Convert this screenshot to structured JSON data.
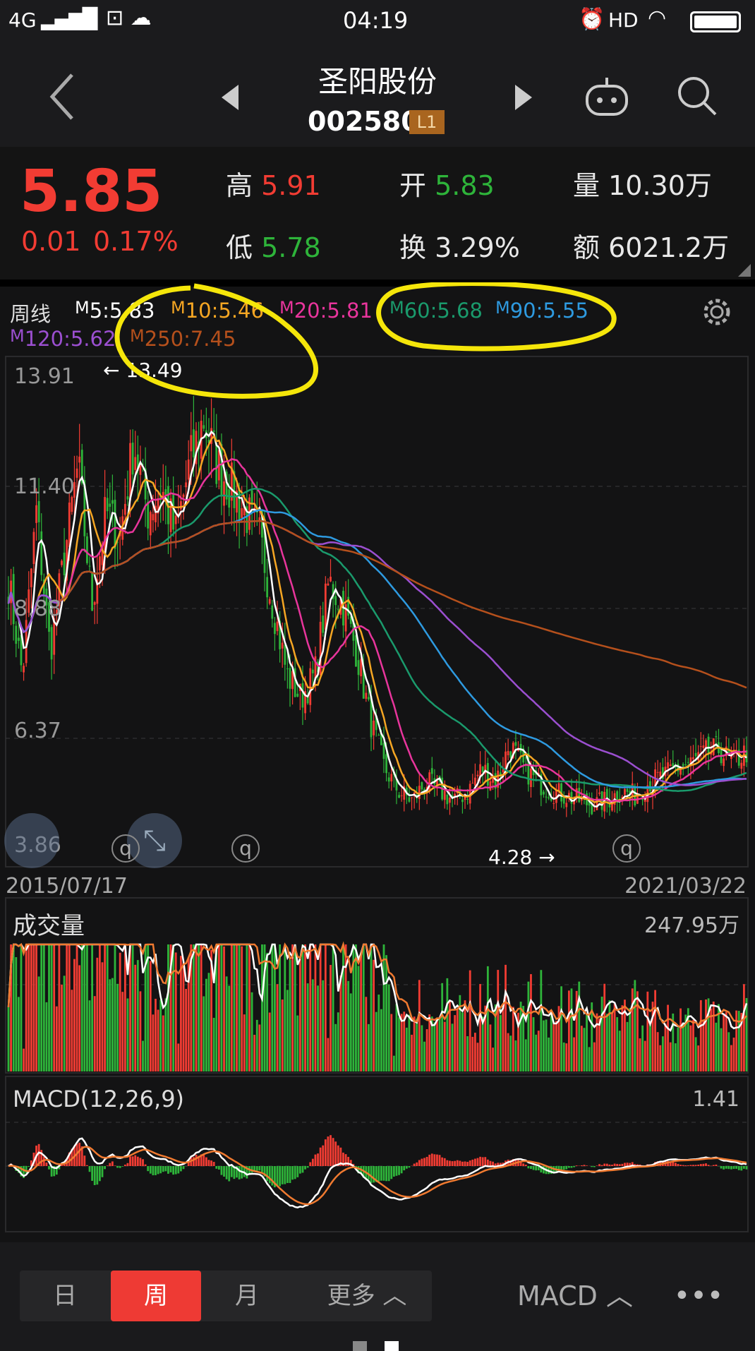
{
  "status_bar": {
    "network": "4G",
    "time": "04:19",
    "hd": "HD"
  },
  "header": {
    "title": "圣阳股份",
    "code": "002580",
    "level_badge": "L1",
    "icons": [
      "back-icon",
      "prev-stock-icon",
      "next-stock-icon",
      "robot-icon",
      "search-icon"
    ]
  },
  "quote": {
    "price": "5.85",
    "change": "0.01",
    "change_pct": "0.17%",
    "high_label": "高",
    "high": "5.91",
    "low_label": "低",
    "low": "5.78",
    "open_label": "开",
    "open": "5.83",
    "turnover_label": "换",
    "turnover": "3.29%",
    "volume_label": "量",
    "volume": "10.30万",
    "amount_label": "额",
    "amount": "6021.2万"
  },
  "ma_legend": {
    "period": "周线",
    "items": [
      {
        "label": "M",
        "value": "5:5.83",
        "color": "#ffffff"
      },
      {
        "label": "M",
        "value": "10:5.46",
        "color": "#f5a623"
      },
      {
        "label": "M",
        "value": "20:5.81",
        "color": "#e8359c"
      },
      {
        "label": "M",
        "value": "60:5.68",
        "color": "#1a9a6c"
      },
      {
        "label": "M",
        "value": "90:5.55",
        "color": "#2e9ae0"
      },
      {
        "label": "M",
        "value": "120:5.62",
        "color": "#9b4fd0"
      },
      {
        "label": "M",
        "value": "250:7.45",
        "color": "#b5501c"
      }
    ]
  },
  "colors": {
    "up": "#f23c33",
    "down": "#2eb43a",
    "annotation": "#f5e60a",
    "background": "#131314"
  },
  "chart_data": {
    "type": "candlestick",
    "period": "weekly",
    "y_ticks": [
      "13.91",
      "11.40",
      "8.88",
      "6.37",
      "3.86"
    ],
    "ylim": [
      3.86,
      13.91
    ],
    "x_start": "2015/07/17",
    "x_end": "2021/03/22",
    "max_marker": "13.49",
    "min_marker": "4.28",
    "approx_closes": [
      9.5,
      7.5,
      11,
      8,
      10,
      12,
      9,
      11,
      10.5,
      12.5,
      11,
      11.5,
      10.5,
      12,
      13,
      12,
      11.5,
      11,
      10.5,
      9,
      7.5,
      7,
      7.5,
      9.5,
      9,
      8,
      6.5,
      5.5,
      5,
      4.8,
      5.2,
      5,
      4.8,
      5,
      5.5,
      5.2,
      6,
      5.5,
      5.2,
      5,
      4.9,
      4.8,
      4.7,
      4.8,
      5,
      4.9,
      5.2,
      5.3,
      5.5,
      5.6,
      5.8,
      5.9,
      5.6,
      5.85
    ],
    "volume_panel": {
      "title": "成交量",
      "max_label": "247.95万"
    },
    "macd_panel": {
      "title": "MACD(12,26,9)",
      "max_label": "1.41"
    }
  },
  "bottom_bar": {
    "tabs": [
      "日",
      "周",
      "月",
      "更多"
    ],
    "active": "周",
    "indicator": "MACD"
  }
}
